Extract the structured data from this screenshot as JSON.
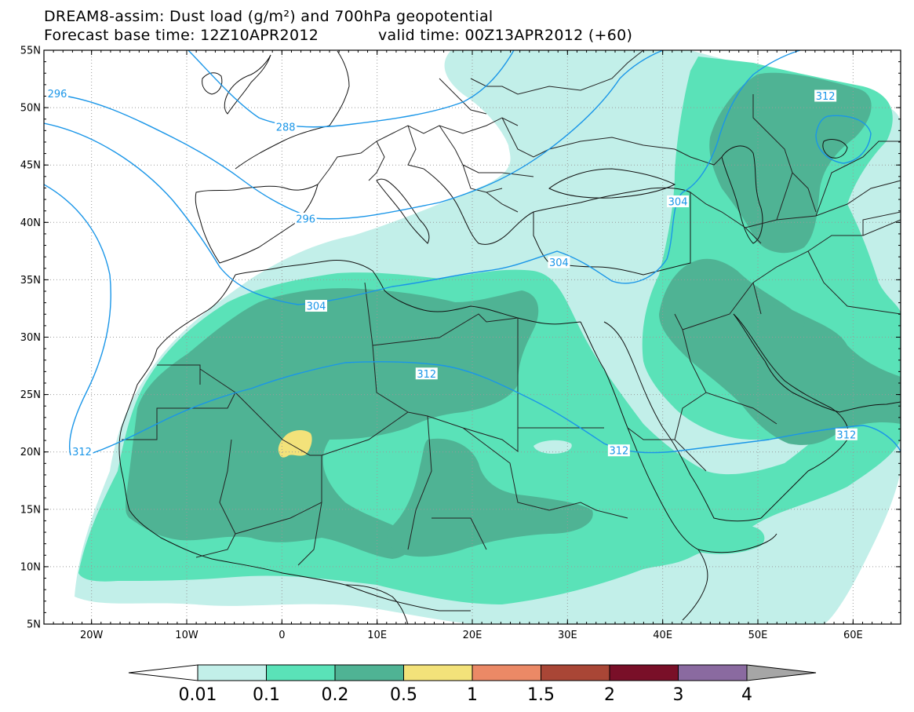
{
  "title": {
    "line1": "DREAM8-assim: Dust load (g/m²) and 700hPa geopotential",
    "line2_base": "Forecast base time: 12Z10APR2012",
    "line2_valid": "valid time: 00Z13APR2012 (+60)"
  },
  "map": {
    "projection": "lat-lon",
    "lon_range": [
      -25,
      65
    ],
    "lat_range": [
      5,
      55
    ],
    "lon_ticks": [
      {
        "value": -20,
        "label": "20W"
      },
      {
        "value": -10,
        "label": "10W"
      },
      {
        "value": 0,
        "label": "0"
      },
      {
        "value": 10,
        "label": "10E"
      },
      {
        "value": 20,
        "label": "20E"
      },
      {
        "value": 30,
        "label": "30E"
      },
      {
        "value": 40,
        "label": "40E"
      },
      {
        "value": 50,
        "label": "50E"
      },
      {
        "value": 60,
        "label": "60E"
      }
    ],
    "lat_ticks": [
      {
        "value": 55,
        "label": "55N"
      },
      {
        "value": 50,
        "label": "50N"
      },
      {
        "value": 45,
        "label": "45N"
      },
      {
        "value": 40,
        "label": "40N"
      },
      {
        "value": 35,
        "label": "35N"
      },
      {
        "value": 30,
        "label": "30N"
      },
      {
        "value": 25,
        "label": "25N"
      },
      {
        "value": 20,
        "label": "20N"
      },
      {
        "value": 15,
        "label": "15N"
      },
      {
        "value": 10,
        "label": "10N"
      },
      {
        "value": 5,
        "label": "5N"
      }
    ],
    "grid": true,
    "contour_color": "#1a96e8",
    "contour_labels": [
      {
        "text": "296",
        "lon": -23.6,
        "lat": 51.2
      },
      {
        "text": "288",
        "lon": 0.4,
        "lat": 48.3
      },
      {
        "text": "296",
        "lon": 2.5,
        "lat": 40.3
      },
      {
        "text": "304",
        "lon": 3.6,
        "lat": 32.7
      },
      {
        "text": "304",
        "lon": 29.1,
        "lat": 36.5
      },
      {
        "text": "304",
        "lon": 41.6,
        "lat": 41.8
      },
      {
        "text": "312",
        "lon": -21.0,
        "lat": 20.0
      },
      {
        "text": "312",
        "lon": 15.2,
        "lat": 26.8
      },
      {
        "text": "312",
        "lon": 35.4,
        "lat": 20.1
      },
      {
        "text": "312",
        "lon": 57.1,
        "lat": 51.0
      },
      {
        "text": "312",
        "lon": 59.3,
        "lat": 21.5
      }
    ]
  },
  "colorbar": {
    "levels": [
      "0.01",
      "0.1",
      "0.2",
      "0.5",
      "1",
      "1.5",
      "2",
      "3",
      "4"
    ],
    "colors": [
      "#c2efe9",
      "#5ae2b8",
      "#4fb394",
      "#f3e27a",
      "#eb8966",
      "#a94636",
      "#790f28",
      "#8a6aa0",
      "#a6a6a6"
    ],
    "below_color": "#ffffff"
  }
}
